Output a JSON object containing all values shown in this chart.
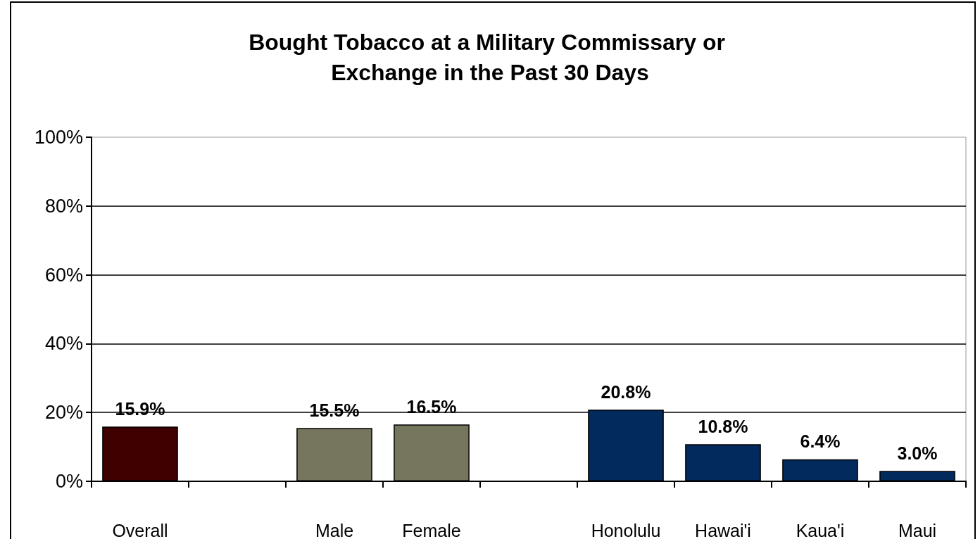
{
  "chart_data": {
    "type": "bar",
    "title": "Bought Tobacco at a Military Commissary or Exchange in the Past 30 Days",
    "categories": [
      "Overall",
      null,
      "Male",
      "Female",
      null,
      "Honolulu",
      "Hawai'i",
      "Kaua'i",
      "Maui"
    ],
    "values": [
      15.9,
      null,
      15.5,
      16.5,
      null,
      20.8,
      10.8,
      6.4,
      3.0
    ],
    "colors": [
      "#3f0000",
      null,
      "#76765e",
      "#76765e",
      null,
      "#032a5c",
      "#032a5c",
      "#032a5c",
      "#032a5c"
    ],
    "value_labels": [
      "15.9%",
      null,
      "15.5%",
      "16.5%",
      null,
      "20.8%",
      "10.8%",
      "6.4%",
      "3.0%"
    ],
    "ylim": [
      0,
      100
    ],
    "yticks": [
      {
        "value": 0,
        "label": "0%"
      },
      {
        "value": 20,
        "label": "20%"
      },
      {
        "value": 40,
        "label": "40%"
      },
      {
        "value": 60,
        "label": "60%"
      },
      {
        "value": 80,
        "label": "80%"
      },
      {
        "value": 100,
        "label": "100%"
      }
    ],
    "grid": "y"
  }
}
